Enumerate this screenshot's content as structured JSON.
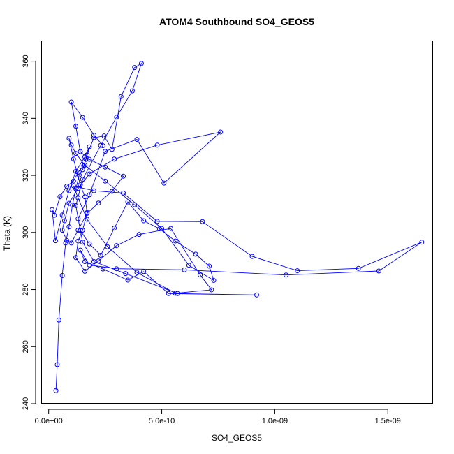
{
  "chart_data": {
    "type": "line",
    "title": "ATOM4 Southbound SO4_GEOS5",
    "xlabel": "SO4_GEOS5",
    "ylabel": "Theta (K)",
    "xlim": [
      -3e-11,
      1.7e-09
    ],
    "ylim": [
      240,
      367
    ],
    "x_ticks": [
      0,
      5e-10,
      1e-09,
      1.5e-09
    ],
    "x_tick_labels": [
      "0.0e+00",
      "5.0e-10",
      "1.0e-09",
      "1.5e-09"
    ],
    "y_ticks": [
      240,
      260,
      280,
      300,
      320,
      340,
      360
    ],
    "y_tick_labels": [
      "240",
      "260",
      "280",
      "300",
      "320",
      "340",
      "360"
    ],
    "grid": false,
    "legend": "none",
    "series": [
      {
        "color": "#0000ff",
        "marker": "open-circle",
        "x": [
          3.2e-11,
          3.8e-11,
          4.5e-11,
          6e-11,
          7.5e-11,
          9e-11,
          1.05e-10,
          1.2e-10,
          1.35e-10,
          1.5e-10,
          1.65e-10,
          1.8e-10,
          1.6e-10,
          1.2e-10,
          9e-11,
          6e-11,
          3e-11,
          1.5e-11,
          2.5e-11,
          5e-11,
          8e-11,
          1.1e-10,
          1.3e-10,
          1.55e-10,
          1.7e-10,
          2e-10,
          2.45e-10,
          2.8e-10,
          3.2e-10,
          3.8e-10,
          4.1e-10,
          3.7e-10,
          3e-10,
          2.3e-10,
          1.5e-10,
          1.2e-10,
          1.4e-10,
          1.8e-10,
          2.3e-10,
          2.9e-10,
          3.5e-10,
          4.2e-10,
          4.9e-10,
          5.6e-10,
          6.5e-10,
          7.1e-10,
          7.3e-10,
          6.2e-10,
          5e-10,
          3.8e-10,
          2.5e-10,
          1.6e-10,
          1.2e-10,
          1e-10,
          9e-11,
          1.1e-10,
          1.4e-10,
          1.6e-10,
          1.7e-10,
          1.5e-10,
          1.3e-10,
          1.2e-10,
          1.6e-10,
          2.2e-10,
          3e-10,
          4e-10,
          5.4e-10,
          6.7e-10,
          7.2e-10,
          5.6e-10,
          3.9e-10,
          2.6e-10,
          1.7e-10,
          1.3e-10,
          1.1e-10,
          2e-10,
          3.3e-10,
          4.8e-10,
          6.8e-10,
          9e-10,
          1.1e-09,
          1.37e-09,
          1.65e-09,
          1.46e-09,
          1.05e-09,
          6e-10,
          3e-10,
          1.8e-10,
          1.4e-10,
          1.6e-10,
          2.4e-10,
          3.5e-10,
          4.2e-10,
          5.3e-10,
          9.2e-10,
          5.7e-10,
          3.4e-10,
          2e-10,
          1.5e-10,
          1.3e-10,
          1.8e-10,
          2.5e-10,
          3.9e-10,
          5.1e-10,
          7.6e-10,
          4.8e-10,
          2.9e-10,
          1.8e-10,
          1.3e-10,
          9e-11,
          7e-11,
          6e-11,
          8e-11,
          1e-10,
          1.3e-10,
          1.7e-10,
          2.2e-10,
          2.8e-10,
          3.3e-10,
          2.5e-10,
          1.8e-10,
          1.4e-10,
          1.2e-10,
          1e-10,
          1.5e-10,
          2e-10,
          2.4e-10
        ],
        "y": [
          244.6,
          253.7,
          269.3,
          284.9,
          296.3,
          302.0,
          309.6,
          315.3,
          320.1,
          322.0,
          325.6,
          330.0,
          326.5,
          321.4,
          314.6,
          306.1,
          297.1,
          308.0,
          306.0,
          312.5,
          316.2,
          318.0,
          321.1,
          323.4,
          327.2,
          333.2,
          333.8,
          329.1,
          347.6,
          357.8,
          359.2,
          349.6,
          340.4,
          330.5,
          318.6,
          309.4,
          300.7,
          296.0,
          292.0,
          301.5,
          310.7,
          304.1,
          301.3,
          297.0,
          292.4,
          288.2,
          283.2,
          288.5,
          301.4,
          309.7,
          318.0,
          323.6,
          327.7,
          330.6,
          333.0,
          325.7,
          316.7,
          312.5,
          307.0,
          300.8,
          297.0,
          291.2,
          286.4,
          290.0,
          295.4,
          299.3,
          301.4,
          285.1,
          279.9,
          278.7,
          286.0,
          295.0,
          304.6,
          312.1,
          316.3,
          314.6,
          313.8,
          303.9,
          303.8,
          291.6,
          286.6,
          287.4,
          296.6,
          286.5,
          285.1,
          286.9,
          287.3,
          288.6,
          293.8,
          289.8,
          287.2,
          283.3,
          286.3,
          278.6,
          278.1,
          278.6,
          285.6,
          289.8,
          296.6,
          304.8,
          313.2,
          328.4,
          332.6,
          317.3,
          335.2,
          330.6,
          325.7,
          320.5,
          315.4,
          310.2,
          304.1,
          300.8,
          297.2,
          296.3,
          300.8,
          306.7,
          310.3,
          314.4,
          319.7,
          322.9,
          325.6,
          328.3,
          337.2,
          345.7,
          340.3,
          334.1,
          330.4
        ]
      }
    ]
  }
}
